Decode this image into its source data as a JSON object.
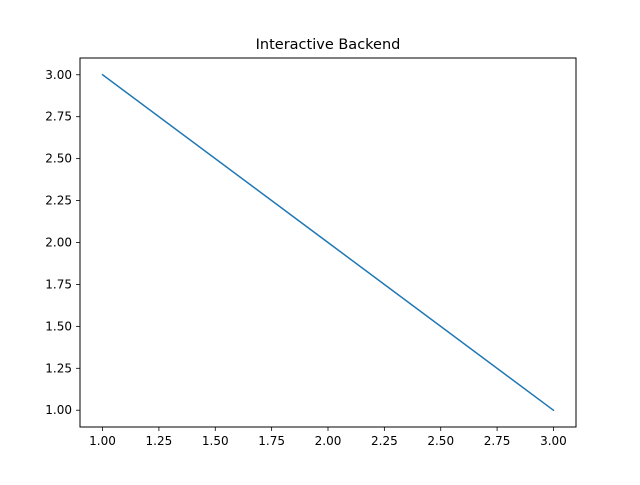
{
  "chart_data": {
    "type": "line",
    "title": "Interactive Backend",
    "xlabel": "",
    "ylabel": "",
    "x": [
      1,
      2,
      3
    ],
    "series": [
      {
        "values": [
          3,
          2,
          1
        ],
        "color": "#1f77b4"
      }
    ],
    "xlim": [
      0.9,
      3.1
    ],
    "ylim": [
      0.9,
      3.1
    ],
    "xticks": [
      "1.00",
      "1.25",
      "1.50",
      "1.75",
      "2.00",
      "2.25",
      "2.50",
      "2.75",
      "3.00"
    ],
    "yticks": [
      "1.00",
      "1.25",
      "1.50",
      "1.75",
      "2.00",
      "2.25",
      "2.50",
      "2.75",
      "3.00"
    ],
    "grid": false,
    "legend": "none"
  }
}
